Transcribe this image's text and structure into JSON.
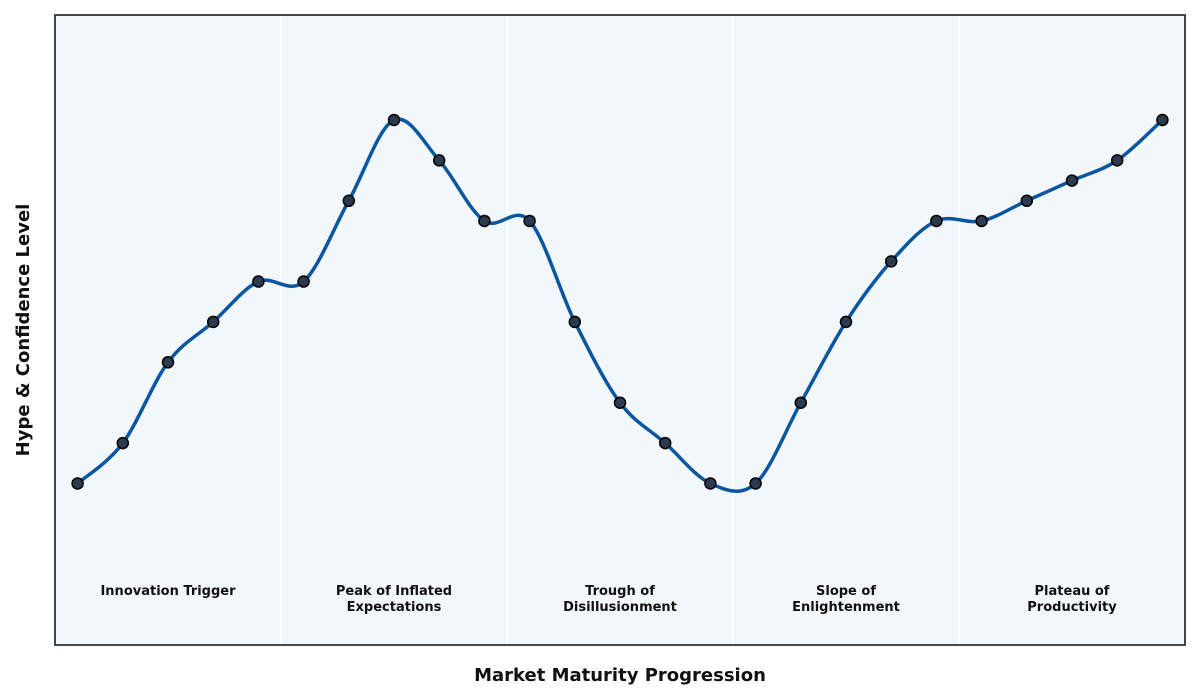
{
  "chart_data": {
    "type": "line",
    "xlabel": "Market Maturity Progression",
    "ylabel": "Hype & Confidence Level",
    "xlim": [
      -0.5,
      24.5
    ],
    "ylim": [
      0,
      7.8
    ],
    "grid": false,
    "phases": [
      {
        "lines": [
          "Innovation Trigger"
        ]
      },
      {
        "lines": [
          "Peak of Inflated",
          "Expectations"
        ]
      },
      {
        "lines": [
          "Trough of",
          "Disillusionment"
        ]
      },
      {
        "lines": [
          "Slope of",
          "Enlightenment"
        ]
      },
      {
        "lines": [
          "Plateau of",
          "Productivity"
        ]
      }
    ],
    "series": [
      {
        "x": [
          0,
          1,
          2,
          3,
          4,
          5,
          6,
          7,
          8,
          9,
          10,
          11,
          12,
          13,
          14,
          15,
          16,
          17,
          18,
          19,
          20,
          21,
          22,
          23,
          24
        ],
        "values": [
          2.0,
          2.5,
          3.5,
          4.0,
          4.5,
          4.5,
          5.5,
          6.5,
          6.0,
          5.25,
          5.25,
          4.0,
          3.0,
          2.5,
          2.0,
          2.0,
          3.0,
          4.0,
          4.75,
          5.25,
          5.25,
          5.5,
          5.75,
          6.0,
          6.5
        ]
      }
    ],
    "colors": {
      "line": "#0a56a0",
      "marker_fill": "#2c3a4f",
      "marker_edge": "#000000",
      "band_fill": "#f2f7fc",
      "band_divider": "#ffffff",
      "frame": "#333333"
    }
  }
}
